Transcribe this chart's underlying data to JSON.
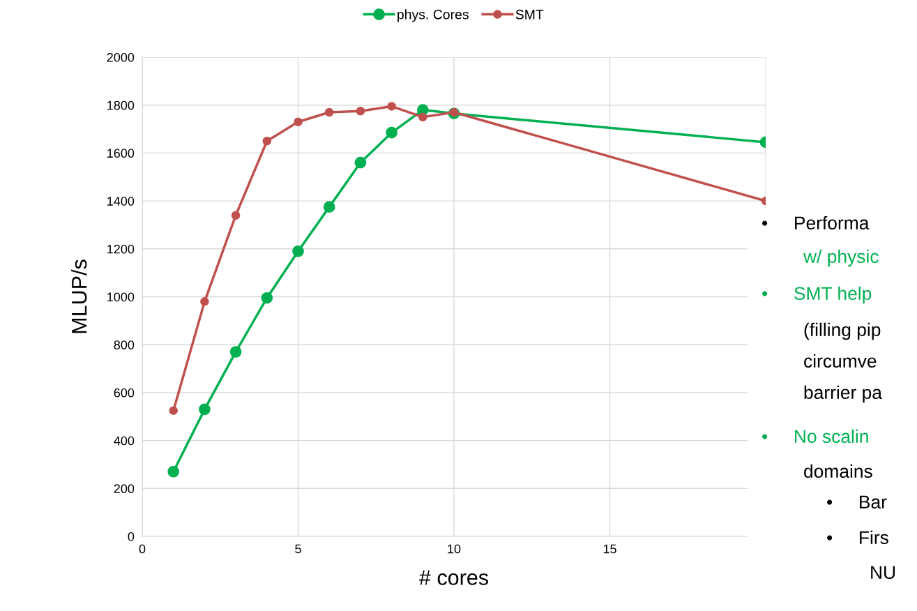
{
  "chart_data": {
    "type": "line",
    "xlabel": "# cores",
    "ylabel": "MLUP/s",
    "xlim": [
      0,
      20
    ],
    "xticks": [
      0,
      5,
      10,
      15
    ],
    "ylim": [
      0,
      2000
    ],
    "yticks": [
      0,
      200,
      400,
      600,
      800,
      1000,
      1200,
      1400,
      1600,
      1800,
      2000
    ],
    "grid": true,
    "legend": "top",
    "marker": "circle",
    "line_style": "solid",
    "series": [
      {
        "name": "phys. Cores",
        "color": "#00b050",
        "x": [
          1,
          2,
          3,
          4,
          5,
          6,
          7,
          8,
          9,
          10,
          20
        ],
        "values": [
          270,
          530,
          770,
          995,
          1190,
          1375,
          1560,
          1685,
          1780,
          1765,
          1645
        ]
      },
      {
        "name": "SMT",
        "color": "#c0504d",
        "x": [
          1,
          2,
          3,
          4,
          5,
          6,
          7,
          8,
          9,
          10,
          20
        ],
        "values": [
          525,
          980,
          1340,
          1650,
          1730,
          1770,
          1775,
          1795,
          1750,
          1770,
          1400
        ]
      }
    ],
    "annotations": [
      "•     Performa",
      "w/ physic",
      "•     SMT help",
      "(filling pip",
      "circumve",
      "barrier pa",
      "•     No scalin",
      "domains",
      "•     Bar",
      "•     Firs",
      "NU"
    ]
  }
}
